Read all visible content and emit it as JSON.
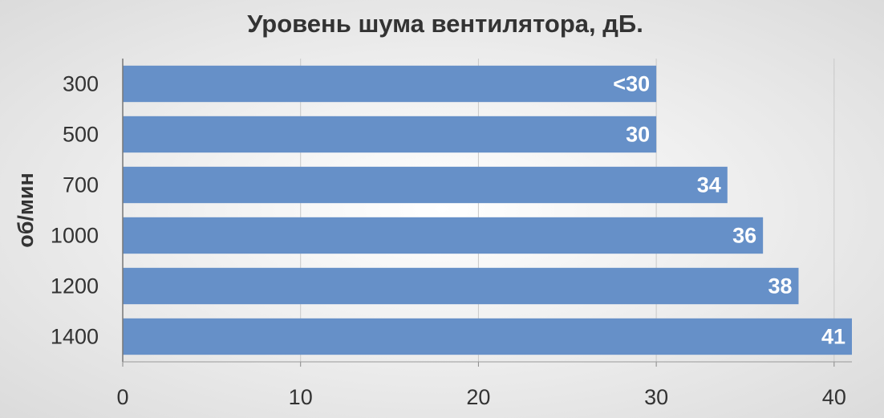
{
  "chart_data": {
    "type": "barh",
    "title": "Уровень шума вентилятора, дБ.",
    "y_label": "об/мин",
    "categories": [
      "300",
      "500",
      "700",
      "1000",
      "1200",
      "1400"
    ],
    "values": [
      30,
      30,
      34,
      36,
      38,
      41
    ],
    "value_labels": [
      "<30",
      "30",
      "34",
      "36",
      "38",
      "41"
    ],
    "color": "#6690c8",
    "xlim": [
      0,
      41
    ],
    "xticks": [
      0,
      10,
      20,
      30,
      40
    ],
    "grid": true
  }
}
